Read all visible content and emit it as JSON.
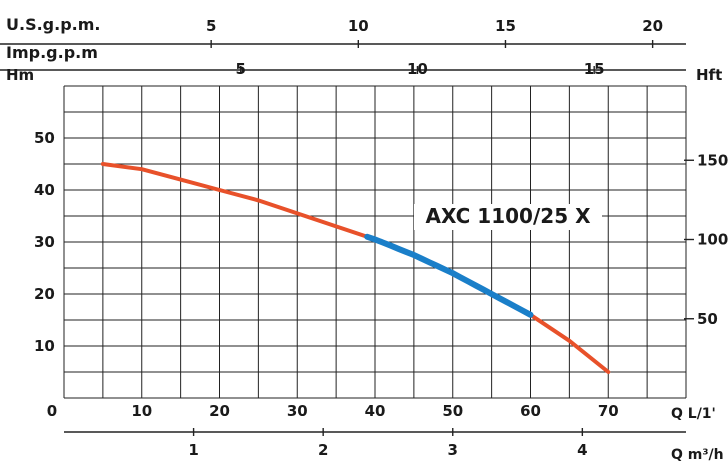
{
  "chart_data": {
    "type": "line",
    "title": "",
    "curve_label": "AXC 1100/25 X",
    "grid": true,
    "colors": {
      "curve": "#e8512a",
      "best_efficiency": "#1a7fc9",
      "grid": "#222222"
    },
    "axes": {
      "x_bottom": {
        "label": "Q L/1'",
        "ticks": [
          "0",
          "10",
          "20",
          "30",
          "40",
          "50",
          "60",
          "70"
        ],
        "range": [
          0,
          80
        ]
      },
      "x_m3h": {
        "label": "Q m³/h",
        "ticks": [
          "1",
          "2",
          "3",
          "4"
        ]
      },
      "x_usgpm": {
        "label": "U.S.g.p.m.",
        "ticks": [
          "5",
          "10",
          "15",
          "20"
        ]
      },
      "x_impgpm": {
        "label": "Imp.g.p.m",
        "ticks": [
          "5",
          "10",
          "15"
        ]
      },
      "y_left": {
        "label": "Hm",
        "ticks": [
          "10",
          "20",
          "30",
          "40",
          "50"
        ],
        "range": [
          0,
          60
        ]
      },
      "y_right": {
        "label": "Hft",
        "ticks": [
          "50",
          "100",
          "150"
        ]
      }
    },
    "series": [
      {
        "x": [
          5,
          10,
          15,
          20,
          25,
          30,
          35,
          40,
          45,
          50,
          55,
          60,
          65,
          70
        ],
        "y": [
          45,
          44,
          42,
          40,
          38,
          35.5,
          33,
          30.5,
          27.5,
          24,
          20,
          16,
          11,
          5
        ]
      }
    ],
    "best_efficiency_range": [
      39,
      60
    ]
  }
}
